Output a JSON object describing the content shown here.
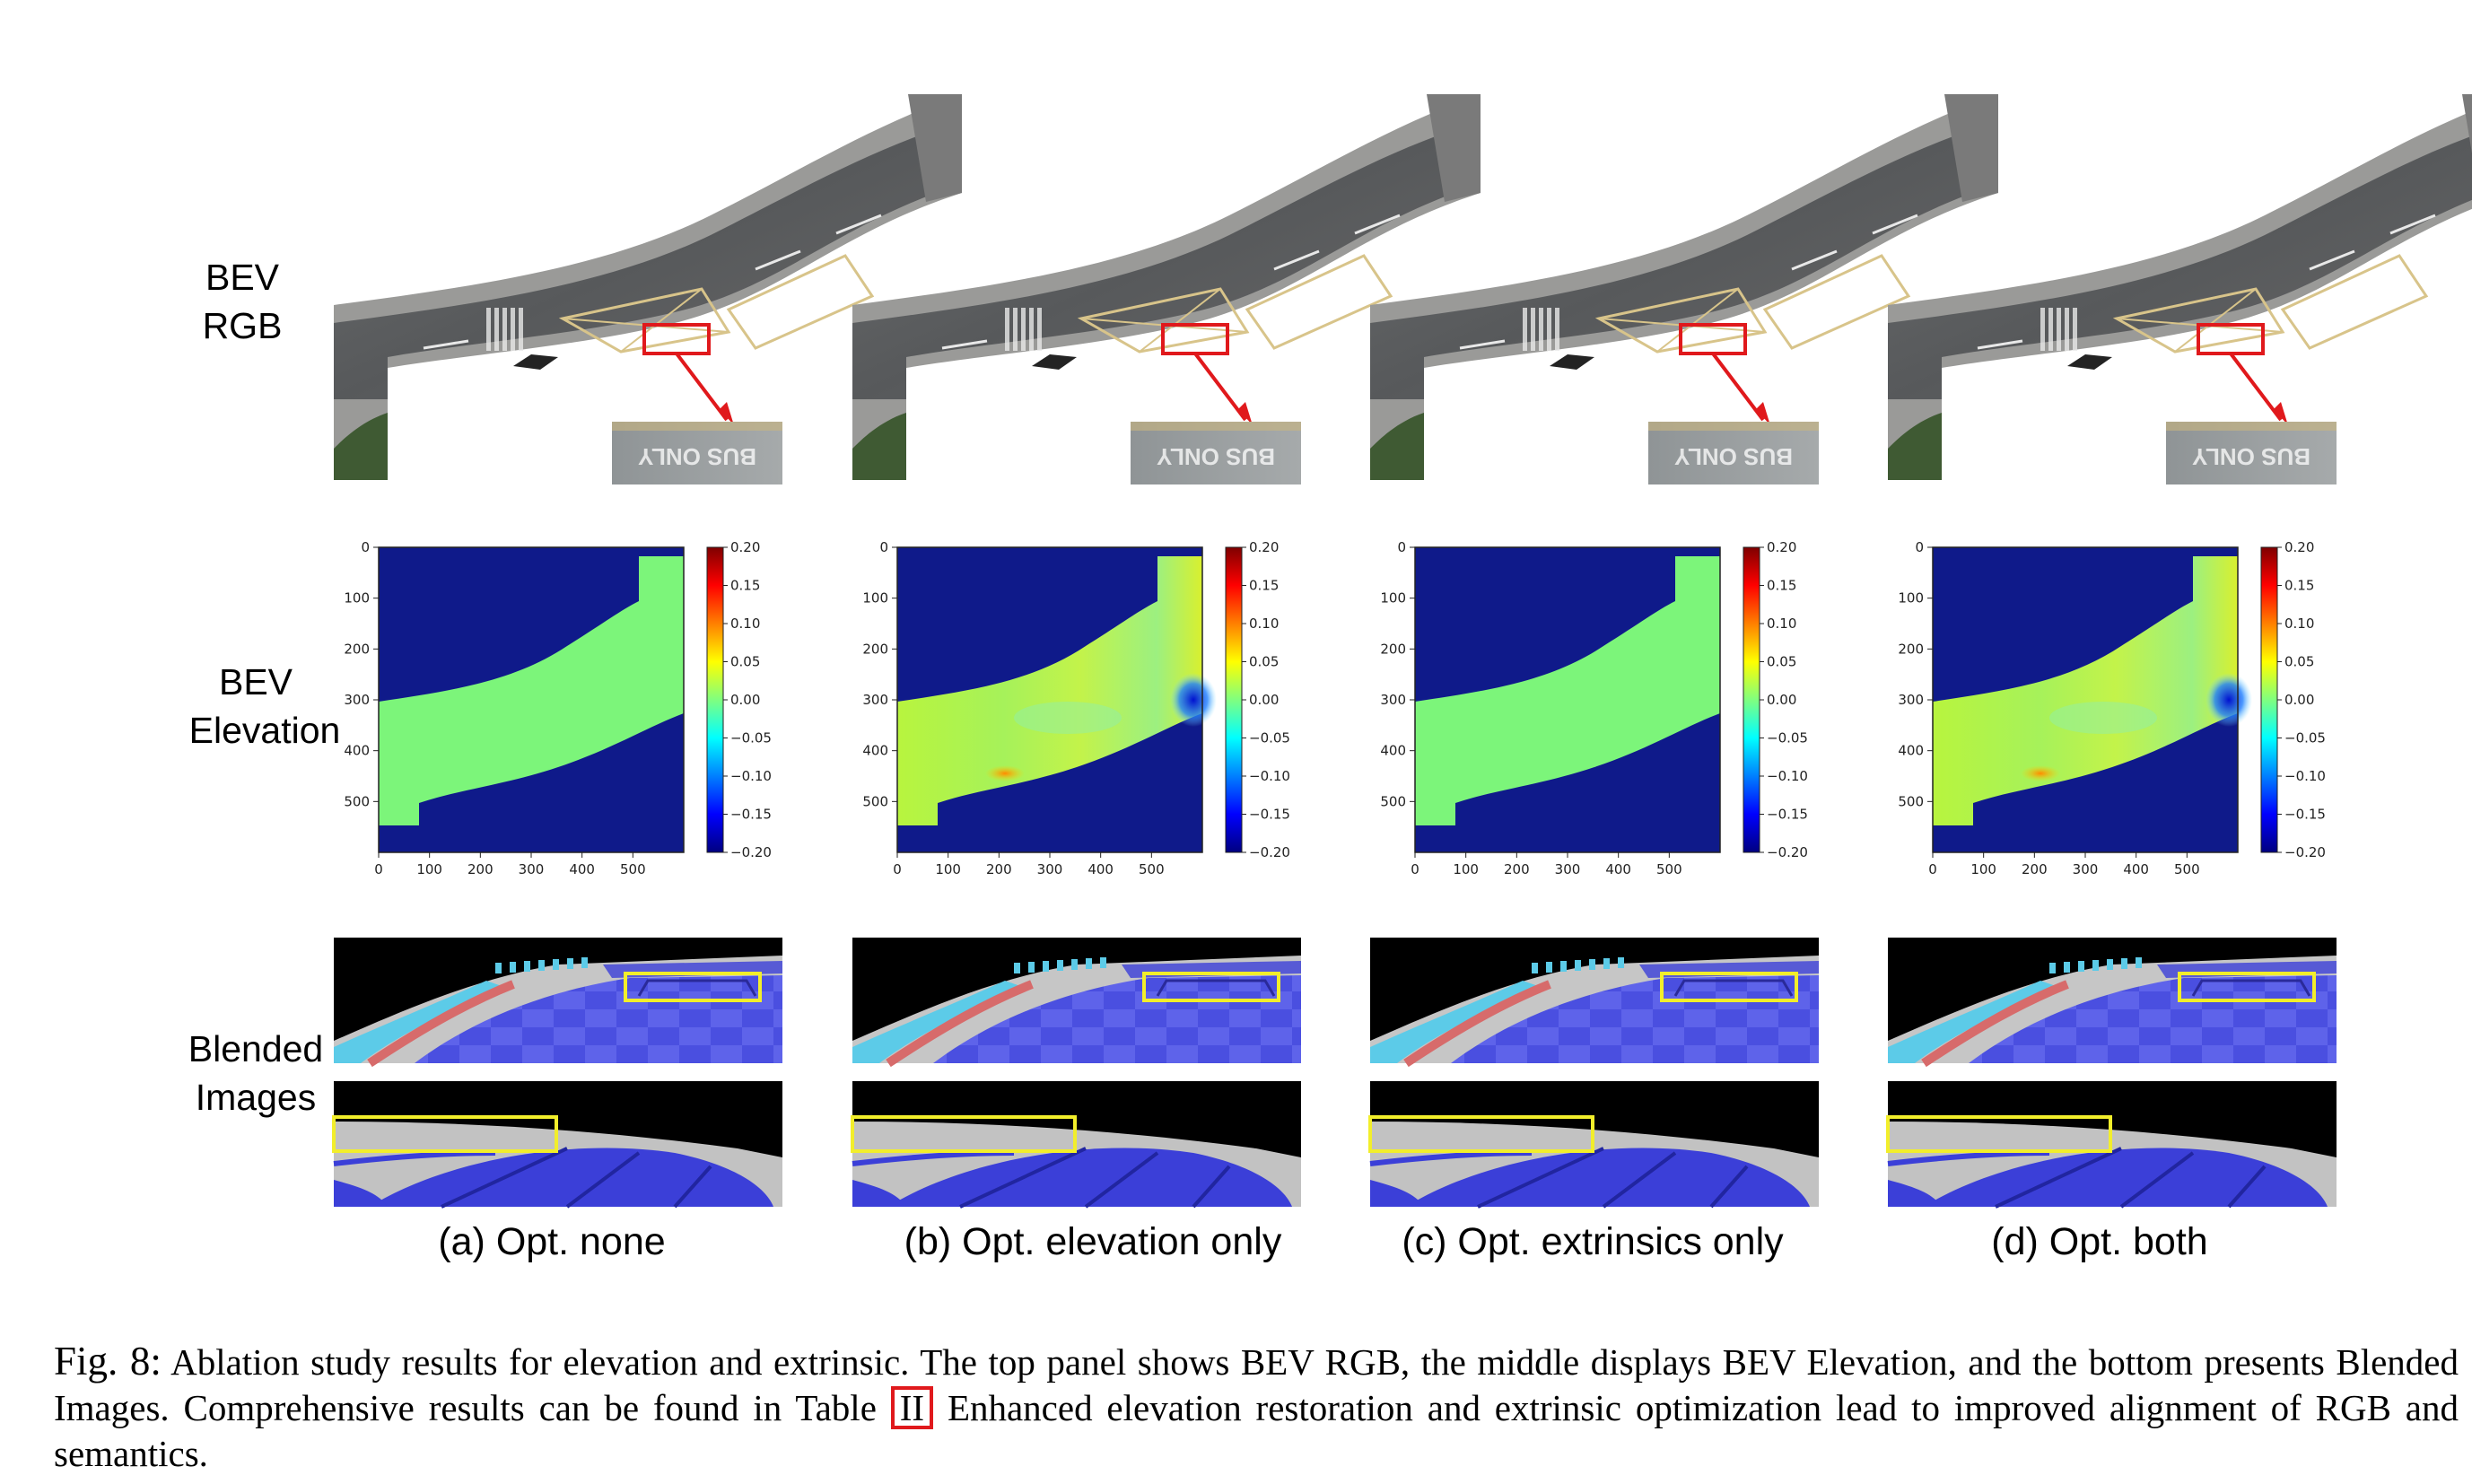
{
  "rows": {
    "rgb": [
      "BEV",
      "RGB"
    ],
    "elevation": [
      "BEV",
      "Elevation"
    ],
    "blended": [
      "Blended",
      "Images"
    ]
  },
  "panels": [
    {
      "caption": "(a) Opt. none",
      "opt_elevation": false,
      "opt_extrinsics": false
    },
    {
      "caption": "(b) Opt. elevation only",
      "opt_elevation": true,
      "opt_extrinsics": false
    },
    {
      "caption": "(c) Opt. extrinsics only",
      "opt_elevation": false,
      "opt_extrinsics": true
    },
    {
      "caption": "(d) Opt. both",
      "opt_elevation": true,
      "opt_extrinsics": true
    }
  ],
  "zoom_text": "BUS ONLY",
  "axes": {
    "x_ticks": [
      "0",
      "100",
      "200",
      "300",
      "400",
      "500"
    ],
    "y_ticks": [
      "0",
      "100",
      "200",
      "300",
      "400",
      "500"
    ],
    "colorbar_ticks": [
      "0.20",
      "0.15",
      "0.10",
      "0.05",
      "0.00",
      "−0.05",
      "−0.10",
      "−0.15",
      "−0.20"
    ]
  },
  "caption": {
    "label": "Fig. 8:",
    "part1": "Ablation study results for elevation and extrinsic. The top panel shows BEV RGB, the middle displays BEV Elevation, and the bottom presents Blended Images. Comprehensive results can be found in Table",
    "ref": "II",
    "part2": "Enhanced elevation restoration and extrinsic optimization lead to improved alignment of RGB and semantics."
  },
  "colors": {
    "highlight_red": "#e0191c",
    "highlight_yellow": "#f2ee2b",
    "semantic_blue": "#3b3fd8",
    "elevation_background": "#0f1a8a"
  }
}
